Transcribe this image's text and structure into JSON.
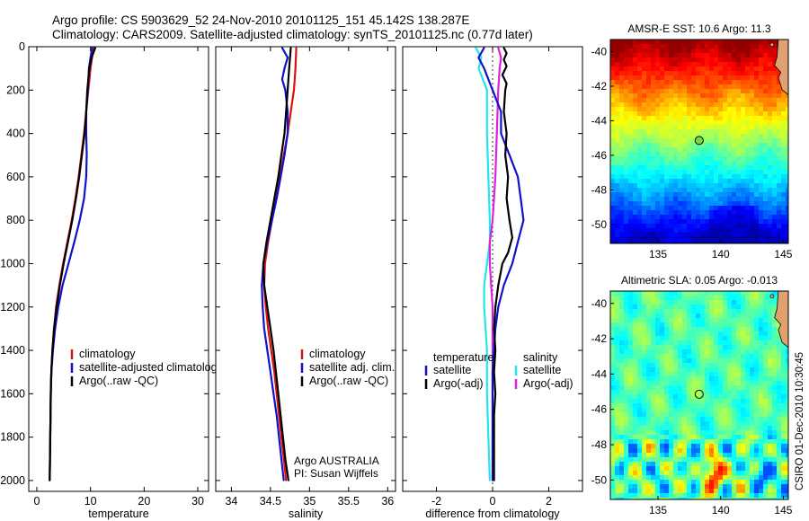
{
  "header": {
    "line1": "Argo profile: CS 5903629_52 24-Nov-2010 20101125_151 45.142S 138.287E",
    "line2": "Climatology: CARS2009. Satellite-adjusted climatology: synTS_20101125.nc (0.77d later)"
  },
  "footer_stamp": "CSIRO 01-Dec-2010 10:30:45",
  "colors": {
    "red": "#dd1111",
    "blue": "#1111cc",
    "black": "#000000",
    "cyan": "#22e5ee",
    "magenta": "#dd22dd"
  },
  "chart_data": [
    {
      "type": "line",
      "id": "temperature",
      "xlabel": "temperature",
      "xlim": [
        -1.5,
        32
      ],
      "ylim": [
        2050,
        0
      ],
      "xticks": [
        0,
        10,
        20,
        30
      ],
      "yticks": [
        0,
        200,
        400,
        600,
        800,
        1000,
        1200,
        1400,
        1600,
        1800,
        2000
      ],
      "legend": [
        {
          "label": "climatology",
          "color": "red"
        },
        {
          "label": "satellite-adjusted climatology",
          "color": "blue"
        },
        {
          "label": "Argo(..raw -QC)",
          "color": "black"
        }
      ],
      "series": [
        {
          "color": "red",
          "points": [
            [
              10.6,
              5
            ],
            [
              10.3,
              50
            ],
            [
              10.0,
              100
            ],
            [
              9.6,
              200
            ],
            [
              9.2,
              300
            ],
            [
              8.8,
              400
            ],
            [
              8.3,
              500
            ],
            [
              7.8,
              600
            ],
            [
              7.2,
              700
            ],
            [
              6.5,
              800
            ],
            [
              5.7,
              900
            ],
            [
              4.9,
              1000
            ],
            [
              4.2,
              1100
            ],
            [
              3.6,
              1200
            ],
            [
              3.2,
              1300
            ],
            [
              2.9,
              1400
            ],
            [
              2.7,
              1500
            ],
            [
              2.6,
              1600
            ],
            [
              2.55,
              1700
            ],
            [
              2.5,
              1800
            ],
            [
              2.45,
              1900
            ],
            [
              2.4,
              2000
            ]
          ]
        },
        {
          "color": "blue",
          "points": [
            [
              10.3,
              5
            ],
            [
              10.0,
              50
            ],
            [
              9.7,
              100
            ],
            [
              9.5,
              200
            ],
            [
              9.2,
              300
            ],
            [
              9.2,
              400
            ],
            [
              9.3,
              500
            ],
            [
              9.2,
              600
            ],
            [
              8.8,
              700
            ],
            [
              8.0,
              800
            ],
            [
              7.0,
              900
            ],
            [
              5.9,
              1000
            ],
            [
              4.8,
              1100
            ],
            [
              4.0,
              1200
            ],
            [
              3.4,
              1300
            ],
            [
              3.0,
              1400
            ],
            [
              2.7,
              1500
            ],
            [
              2.6,
              1600
            ],
            [
              2.55,
              1700
            ],
            [
              2.5,
              1800
            ],
            [
              2.45,
              1900
            ],
            [
              2.4,
              2000
            ]
          ]
        },
        {
          "color": "black",
          "points": [
            [
              10.9,
              5
            ],
            [
              10.2,
              50
            ],
            [
              9.8,
              100
            ],
            [
              9.4,
              200
            ],
            [
              9.2,
              300
            ],
            [
              8.9,
              400
            ],
            [
              8.4,
              500
            ],
            [
              7.9,
              600
            ],
            [
              7.3,
              700
            ],
            [
              6.6,
              800
            ],
            [
              5.8,
              900
            ],
            [
              5.0,
              1000
            ],
            [
              4.3,
              1100
            ],
            [
              3.7,
              1200
            ],
            [
              3.2,
              1300
            ],
            [
              2.9,
              1400
            ],
            [
              2.7,
              1500
            ],
            [
              2.6,
              1600
            ],
            [
              2.55,
              1700
            ],
            [
              2.5,
              1800
            ],
            [
              2.45,
              1900
            ],
            [
              2.4,
              2000
            ]
          ]
        }
      ]
    },
    {
      "type": "line",
      "id": "salinity",
      "xlabel": "salinity",
      "xlim": [
        33.8,
        36.1
      ],
      "ylim": [
        2050,
        0
      ],
      "xticks": [
        34,
        34.5,
        35,
        35.5,
        36
      ],
      "legend": [
        {
          "label": "climatology",
          "color": "red"
        },
        {
          "label": "satellite adj. clim.",
          "color": "blue"
        },
        {
          "label": "Argo(..raw -QC)",
          "color": "black"
        }
      ],
      "annotation": [
        "Argo AUSTRALIA",
        "PI: Susan Wijffels"
      ],
      "series": [
        {
          "color": "red",
          "points": [
            [
              34.83,
              5
            ],
            [
              34.82,
              100
            ],
            [
              34.8,
              200
            ],
            [
              34.76,
              300
            ],
            [
              34.72,
              400
            ],
            [
              34.67,
              500
            ],
            [
              34.62,
              600
            ],
            [
              34.57,
              700
            ],
            [
              34.52,
              800
            ],
            [
              34.47,
              900
            ],
            [
              34.43,
              1000
            ],
            [
              34.42,
              1100
            ],
            [
              34.44,
              1200
            ],
            [
              34.47,
              1300
            ],
            [
              34.51,
              1400
            ],
            [
              34.55,
              1500
            ],
            [
              34.58,
              1600
            ],
            [
              34.61,
              1700
            ],
            [
              34.64,
              1800
            ],
            [
              34.67,
              1900
            ],
            [
              34.7,
              2000
            ]
          ]
        },
        {
          "color": "blue",
          "points": [
            [
              34.65,
              5
            ],
            [
              34.72,
              50
            ],
            [
              34.68,
              100
            ],
            [
              34.65,
              150
            ],
            [
              34.69,
              200
            ],
            [
              34.72,
              300
            ],
            [
              34.72,
              400
            ],
            [
              34.68,
              500
            ],
            [
              34.63,
              600
            ],
            [
              34.58,
              700
            ],
            [
              34.52,
              800
            ],
            [
              34.46,
              900
            ],
            [
              34.41,
              1000
            ],
            [
              34.39,
              1100
            ],
            [
              34.4,
              1200
            ],
            [
              34.42,
              1300
            ],
            [
              34.46,
              1400
            ],
            [
              34.5,
              1500
            ],
            [
              34.54,
              1600
            ],
            [
              34.58,
              1700
            ],
            [
              34.61,
              1800
            ],
            [
              34.64,
              1900
            ],
            [
              34.67,
              2000
            ]
          ]
        },
        {
          "color": "black",
          "points": [
            [
              34.76,
              5
            ],
            [
              34.74,
              100
            ],
            [
              34.72,
              200
            ],
            [
              34.7,
              300
            ],
            [
              34.68,
              400
            ],
            [
              34.64,
              500
            ],
            [
              34.6,
              600
            ],
            [
              34.55,
              700
            ],
            [
              34.5,
              800
            ],
            [
              34.45,
              900
            ],
            [
              34.41,
              1000
            ],
            [
              34.42,
              1100
            ],
            [
              34.46,
              1200
            ],
            [
              34.5,
              1300
            ],
            [
              34.54,
              1400
            ],
            [
              34.57,
              1500
            ],
            [
              34.6,
              1600
            ],
            [
              34.63,
              1700
            ],
            [
              34.66,
              1800
            ],
            [
              34.69,
              1900
            ],
            [
              34.73,
              2000
            ]
          ]
        }
      ]
    },
    {
      "type": "line",
      "id": "difference",
      "xlabel": "difference from climatology",
      "xlim": [
        -3.2,
        3.2
      ],
      "ylim": [
        2050,
        0
      ],
      "xticks": [
        -2,
        0,
        2
      ],
      "legend": [
        {
          "group": "temperature",
          "label": "satellite",
          "color": "blue"
        },
        {
          "group": "temperature",
          "label": "Argo(-adj)",
          "color": "black"
        },
        {
          "group": "salinity",
          "label": "satellite",
          "color": "cyan"
        },
        {
          "group": "salinity",
          "label": "Argo(-adj)",
          "color": "magenta"
        }
      ],
      "series": [
        {
          "color": "blue",
          "points": [
            [
              -0.3,
              5
            ],
            [
              -0.5,
              50
            ],
            [
              -0.3,
              100
            ],
            [
              0.0,
              200
            ],
            [
              0.3,
              300
            ],
            [
              0.3,
              400
            ],
            [
              0.6,
              500
            ],
            [
              0.9,
              600
            ],
            [
              1.0,
              700
            ],
            [
              1.1,
              800
            ],
            [
              0.9,
              900
            ],
            [
              0.7,
              1000
            ],
            [
              0.4,
              1100
            ],
            [
              0.2,
              1200
            ],
            [
              0.1,
              1300
            ],
            [
              0.05,
              1400
            ],
            [
              0.0,
              1500
            ],
            [
              0.0,
              1600
            ],
            [
              0.0,
              1700
            ],
            [
              0.0,
              1800
            ],
            [
              0.0,
              1900
            ],
            [
              0.0,
              2000
            ]
          ]
        },
        {
          "color": "black",
          "points": [
            [
              0.4,
              5
            ],
            [
              0.5,
              30
            ],
            [
              0.4,
              60
            ],
            [
              0.5,
              90
            ],
            [
              0.35,
              130
            ],
            [
              0.5,
              170
            ],
            [
              0.45,
              200
            ],
            [
              0.4,
              300
            ],
            [
              0.5,
              400
            ],
            [
              0.45,
              500
            ],
            [
              0.55,
              600
            ],
            [
              0.5,
              700
            ],
            [
              0.6,
              800
            ],
            [
              0.7,
              880
            ],
            [
              0.55,
              950
            ],
            [
              0.35,
              1000
            ],
            [
              0.2,
              1100
            ],
            [
              0.1,
              1200
            ],
            [
              0.05,
              1300
            ],
            [
              0.1,
              1400
            ],
            [
              0.05,
              1500
            ],
            [
              0.1,
              1600
            ],
            [
              0.05,
              1700
            ],
            [
              0.05,
              1800
            ],
            [
              0.05,
              1900
            ],
            [
              0.05,
              2000
            ]
          ]
        },
        {
          "color": "cyan",
          "points": [
            [
              -0.6,
              5
            ],
            [
              -0.4,
              50
            ],
            [
              -0.5,
              100
            ],
            [
              -0.2,
              200
            ],
            [
              -0.2,
              400
            ],
            [
              -0.15,
              600
            ],
            [
              -0.1,
              800
            ],
            [
              -0.1,
              900
            ],
            [
              -0.2,
              1000
            ],
            [
              -0.3,
              1100
            ],
            [
              -0.3,
              1200
            ],
            [
              -0.25,
              1300
            ],
            [
              -0.2,
              1400
            ],
            [
              -0.2,
              1600
            ],
            [
              -0.15,
              1800
            ],
            [
              -0.1,
              2000
            ]
          ]
        },
        {
          "color": "magenta",
          "points": [
            [
              0.2,
              5
            ],
            [
              0.3,
              50
            ],
            [
              0.25,
              100
            ],
            [
              0.2,
              200
            ],
            [
              0.15,
              400
            ],
            [
              0.1,
              600
            ],
            [
              0.0,
              800
            ],
            [
              -0.1,
              900
            ],
            [
              -0.1,
              1000
            ],
            [
              -0.05,
              1100
            ],
            [
              0.0,
              1200
            ],
            [
              0.0,
              1400
            ],
            [
              0.0,
              1600
            ],
            [
              0.0,
              1800
            ],
            [
              0.0,
              2000
            ]
          ]
        }
      ]
    },
    {
      "type": "heatmap",
      "id": "sst_map",
      "title": "AMSR-E SST: 10.6 Argo: 11.3",
      "xlim": [
        131.2,
        145.4
      ],
      "ylim": [
        -51.1,
        -39.3
      ],
      "xticks": [
        135,
        140,
        145
      ],
      "yticks": [
        -40,
        -42,
        -44,
        -46,
        -48,
        -50
      ],
      "marker": {
        "lon": 138.287,
        "lat": -45.142
      },
      "colormap": "jet"
    },
    {
      "type": "heatmap",
      "id": "sla_map",
      "title": "Altimetric SLA: 0.05 Argo: -0.013",
      "xlim": [
        131.2,
        145.4
      ],
      "ylim": [
        -51.1,
        -39.3
      ],
      "xticks": [
        135,
        140,
        145
      ],
      "yticks": [
        -40,
        -42,
        -44,
        -46,
        -48,
        -50
      ],
      "marker": {
        "lon": 138.287,
        "lat": -45.142
      },
      "colormap": "jet"
    }
  ]
}
